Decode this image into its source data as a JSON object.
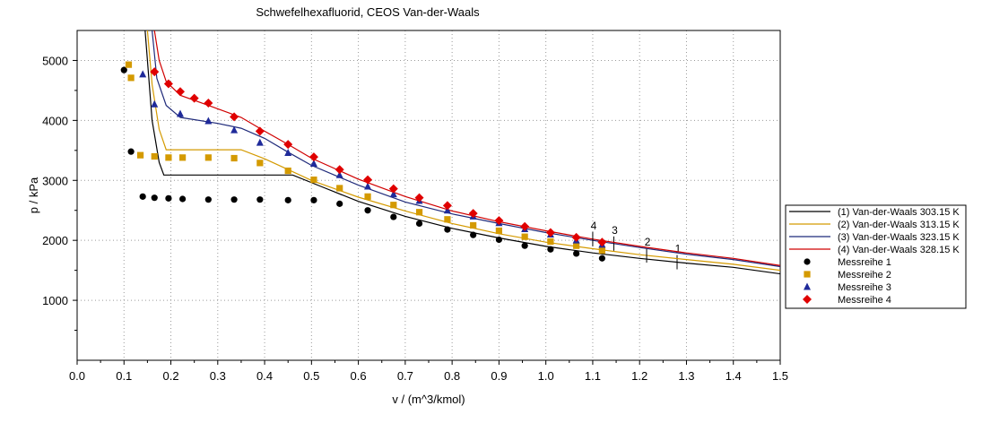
{
  "chart_data": {
    "type": "line",
    "title": "Schwefelhexafluorid, CEOS Van-der-Waals",
    "xlabel": "v / (m^3/kmol)",
    "ylabel": "p / kPa",
    "xlim": [
      0.0,
      1.5
    ],
    "ylim": [
      0,
      5500
    ],
    "grid": true,
    "x_ticks": [
      "0.0",
      "0.1",
      "0.2",
      "0.3",
      "0.4",
      "0.5",
      "0.6",
      "0.7",
      "0.8",
      "0.9",
      "1.0",
      "1.1",
      "1.2",
      "1.3",
      "1.4",
      "1.5"
    ],
    "y_ticks": [
      "1000",
      "2000",
      "3000",
      "4000",
      "5000"
    ],
    "legend_position": "right",
    "series": [
      {
        "name": "(1) Van-der-Waals 303.15 K",
        "kind": "line",
        "color": "#000000",
        "label": "1",
        "label_x": 1.28,
        "points": [
          [
            0.145,
            5500
          ],
          [
            0.16,
            4000
          ],
          [
            0.175,
            3300
          ],
          [
            0.185,
            3090
          ],
          [
            0.46,
            3090
          ],
          [
            0.52,
            2900
          ],
          [
            0.6,
            2650
          ],
          [
            0.7,
            2400
          ],
          [
            0.8,
            2200
          ],
          [
            0.9,
            2040
          ],
          [
            1.0,
            1900
          ],
          [
            1.1,
            1790
          ],
          [
            1.2,
            1700
          ],
          [
            1.3,
            1620
          ],
          [
            1.4,
            1550
          ],
          [
            1.51,
            1430
          ]
        ]
      },
      {
        "name": "(2) Van-der-Waals  313.15 K",
        "kind": "line",
        "color": "#d49a00",
        "label": "2",
        "label_x": 1.215,
        "points": [
          [
            0.15,
            5500
          ],
          [
            0.16,
            4600
          ],
          [
            0.175,
            3850
          ],
          [
            0.19,
            3510
          ],
          [
            0.35,
            3510
          ],
          [
            0.4,
            3360
          ],
          [
            0.45,
            3180
          ],
          [
            0.5,
            3000
          ],
          [
            0.6,
            2720
          ],
          [
            0.7,
            2490
          ],
          [
            0.8,
            2280
          ],
          [
            0.9,
            2110
          ],
          [
            1.0,
            1970
          ],
          [
            1.1,
            1860
          ],
          [
            1.2,
            1760
          ],
          [
            1.3,
            1680
          ],
          [
            1.4,
            1600
          ],
          [
            1.51,
            1490
          ]
        ]
      },
      {
        "name": "(3) Van-der-Waals 323.15 K",
        "kind": "line",
        "color": "#1f2a7a",
        "label": "3",
        "label_x": 1.145,
        "points": [
          [
            0.16,
            5500
          ],
          [
            0.17,
            4700
          ],
          [
            0.19,
            4250
          ],
          [
            0.22,
            4050
          ],
          [
            0.3,
            3950
          ],
          [
            0.35,
            3870
          ],
          [
            0.4,
            3700
          ],
          [
            0.45,
            3470
          ],
          [
            0.5,
            3250
          ],
          [
            0.6,
            2920
          ],
          [
            0.7,
            2640
          ],
          [
            0.8,
            2440
          ],
          [
            0.9,
            2280
          ],
          [
            1.0,
            2130
          ],
          [
            1.1,
            2000
          ],
          [
            1.2,
            1880
          ],
          [
            1.3,
            1770
          ],
          [
            1.4,
            1680
          ],
          [
            1.51,
            1550
          ]
        ]
      },
      {
        "name": "(4) Van-der-Waals 328.15 K",
        "kind": "line",
        "color": "#d00000",
        "label": "4",
        "label_x": 1.1,
        "points": [
          [
            0.165,
            5500
          ],
          [
            0.175,
            5000
          ],
          [
            0.19,
            4650
          ],
          [
            0.22,
            4420
          ],
          [
            0.28,
            4250
          ],
          [
            0.35,
            4050
          ],
          [
            0.4,
            3820
          ],
          [
            0.45,
            3600
          ],
          [
            0.5,
            3370
          ],
          [
            0.6,
            3020
          ],
          [
            0.7,
            2730
          ],
          [
            0.8,
            2490
          ],
          [
            0.9,
            2310
          ],
          [
            1.0,
            2160
          ],
          [
            1.1,
            2020
          ],
          [
            1.2,
            1900
          ],
          [
            1.3,
            1790
          ],
          [
            1.4,
            1700
          ],
          [
            1.51,
            1570
          ]
        ]
      },
      {
        "name": "Messreihe 1",
        "kind": "scatter",
        "color": "#000000",
        "marker": "circle",
        "points": [
          [
            0.1,
            4840
          ],
          [
            0.115,
            3480
          ],
          [
            0.14,
            2730
          ],
          [
            0.165,
            2710
          ],
          [
            0.195,
            2700
          ],
          [
            0.225,
            2690
          ],
          [
            0.28,
            2680
          ],
          [
            0.335,
            2680
          ],
          [
            0.39,
            2680
          ],
          [
            0.45,
            2670
          ],
          [
            0.505,
            2670
          ],
          [
            0.56,
            2610
          ],
          [
            0.62,
            2500
          ],
          [
            0.675,
            2390
          ],
          [
            0.73,
            2280
          ],
          [
            0.79,
            2180
          ],
          [
            0.845,
            2090
          ],
          [
            0.9,
            2010
          ],
          [
            0.955,
            1910
          ],
          [
            1.01,
            1850
          ],
          [
            1.065,
            1780
          ],
          [
            1.12,
            1700
          ]
        ]
      },
      {
        "name": "Messreihe 2",
        "kind": "scatter",
        "color": "#d49a00",
        "marker": "square",
        "points": [
          [
            0.11,
            4930
          ],
          [
            0.115,
            4710
          ],
          [
            0.135,
            3420
          ],
          [
            0.165,
            3400
          ],
          [
            0.195,
            3380
          ],
          [
            0.225,
            3380
          ],
          [
            0.28,
            3380
          ],
          [
            0.335,
            3370
          ],
          [
            0.39,
            3290
          ],
          [
            0.45,
            3160
          ],
          [
            0.505,
            3010
          ],
          [
            0.56,
            2870
          ],
          [
            0.62,
            2730
          ],
          [
            0.675,
            2590
          ],
          [
            0.73,
            2470
          ],
          [
            0.79,
            2350
          ],
          [
            0.845,
            2250
          ],
          [
            0.9,
            2160
          ],
          [
            0.955,
            2060
          ],
          [
            1.01,
            1980
          ],
          [
            1.065,
            1910
          ],
          [
            1.12,
            1830
          ]
        ]
      },
      {
        "name": "Messreihe 3",
        "kind": "scatter",
        "color": "#1f2a9a",
        "marker": "triangle",
        "points": [
          [
            0.14,
            4770
          ],
          [
            0.165,
            4270
          ],
          [
            0.22,
            4110
          ],
          [
            0.28,
            3990
          ],
          [
            0.335,
            3840
          ],
          [
            0.39,
            3630
          ],
          [
            0.45,
            3460
          ],
          [
            0.505,
            3280
          ],
          [
            0.56,
            3090
          ],
          [
            0.62,
            2900
          ],
          [
            0.675,
            2770
          ],
          [
            0.73,
            2660
          ],
          [
            0.79,
            2500
          ],
          [
            0.845,
            2400
          ],
          [
            0.9,
            2290
          ],
          [
            0.955,
            2190
          ],
          [
            1.01,
            2100
          ],
          [
            1.065,
            2000
          ],
          [
            1.12,
            1930
          ]
        ]
      },
      {
        "name": "Messreihe 4",
        "kind": "scatter",
        "color": "#e00000",
        "marker": "diamond",
        "points": [
          [
            0.165,
            4810
          ],
          [
            0.195,
            4610
          ],
          [
            0.22,
            4480
          ],
          [
            0.25,
            4370
          ],
          [
            0.28,
            4290
          ],
          [
            0.335,
            4060
          ],
          [
            0.39,
            3820
          ],
          [
            0.45,
            3600
          ],
          [
            0.505,
            3390
          ],
          [
            0.56,
            3180
          ],
          [
            0.62,
            3010
          ],
          [
            0.675,
            2860
          ],
          [
            0.73,
            2710
          ],
          [
            0.79,
            2580
          ],
          [
            0.845,
            2450
          ],
          [
            0.9,
            2330
          ],
          [
            0.955,
            2230
          ],
          [
            1.01,
            2130
          ],
          [
            1.065,
            2050
          ],
          [
            1.12,
            1970
          ]
        ]
      }
    ]
  }
}
